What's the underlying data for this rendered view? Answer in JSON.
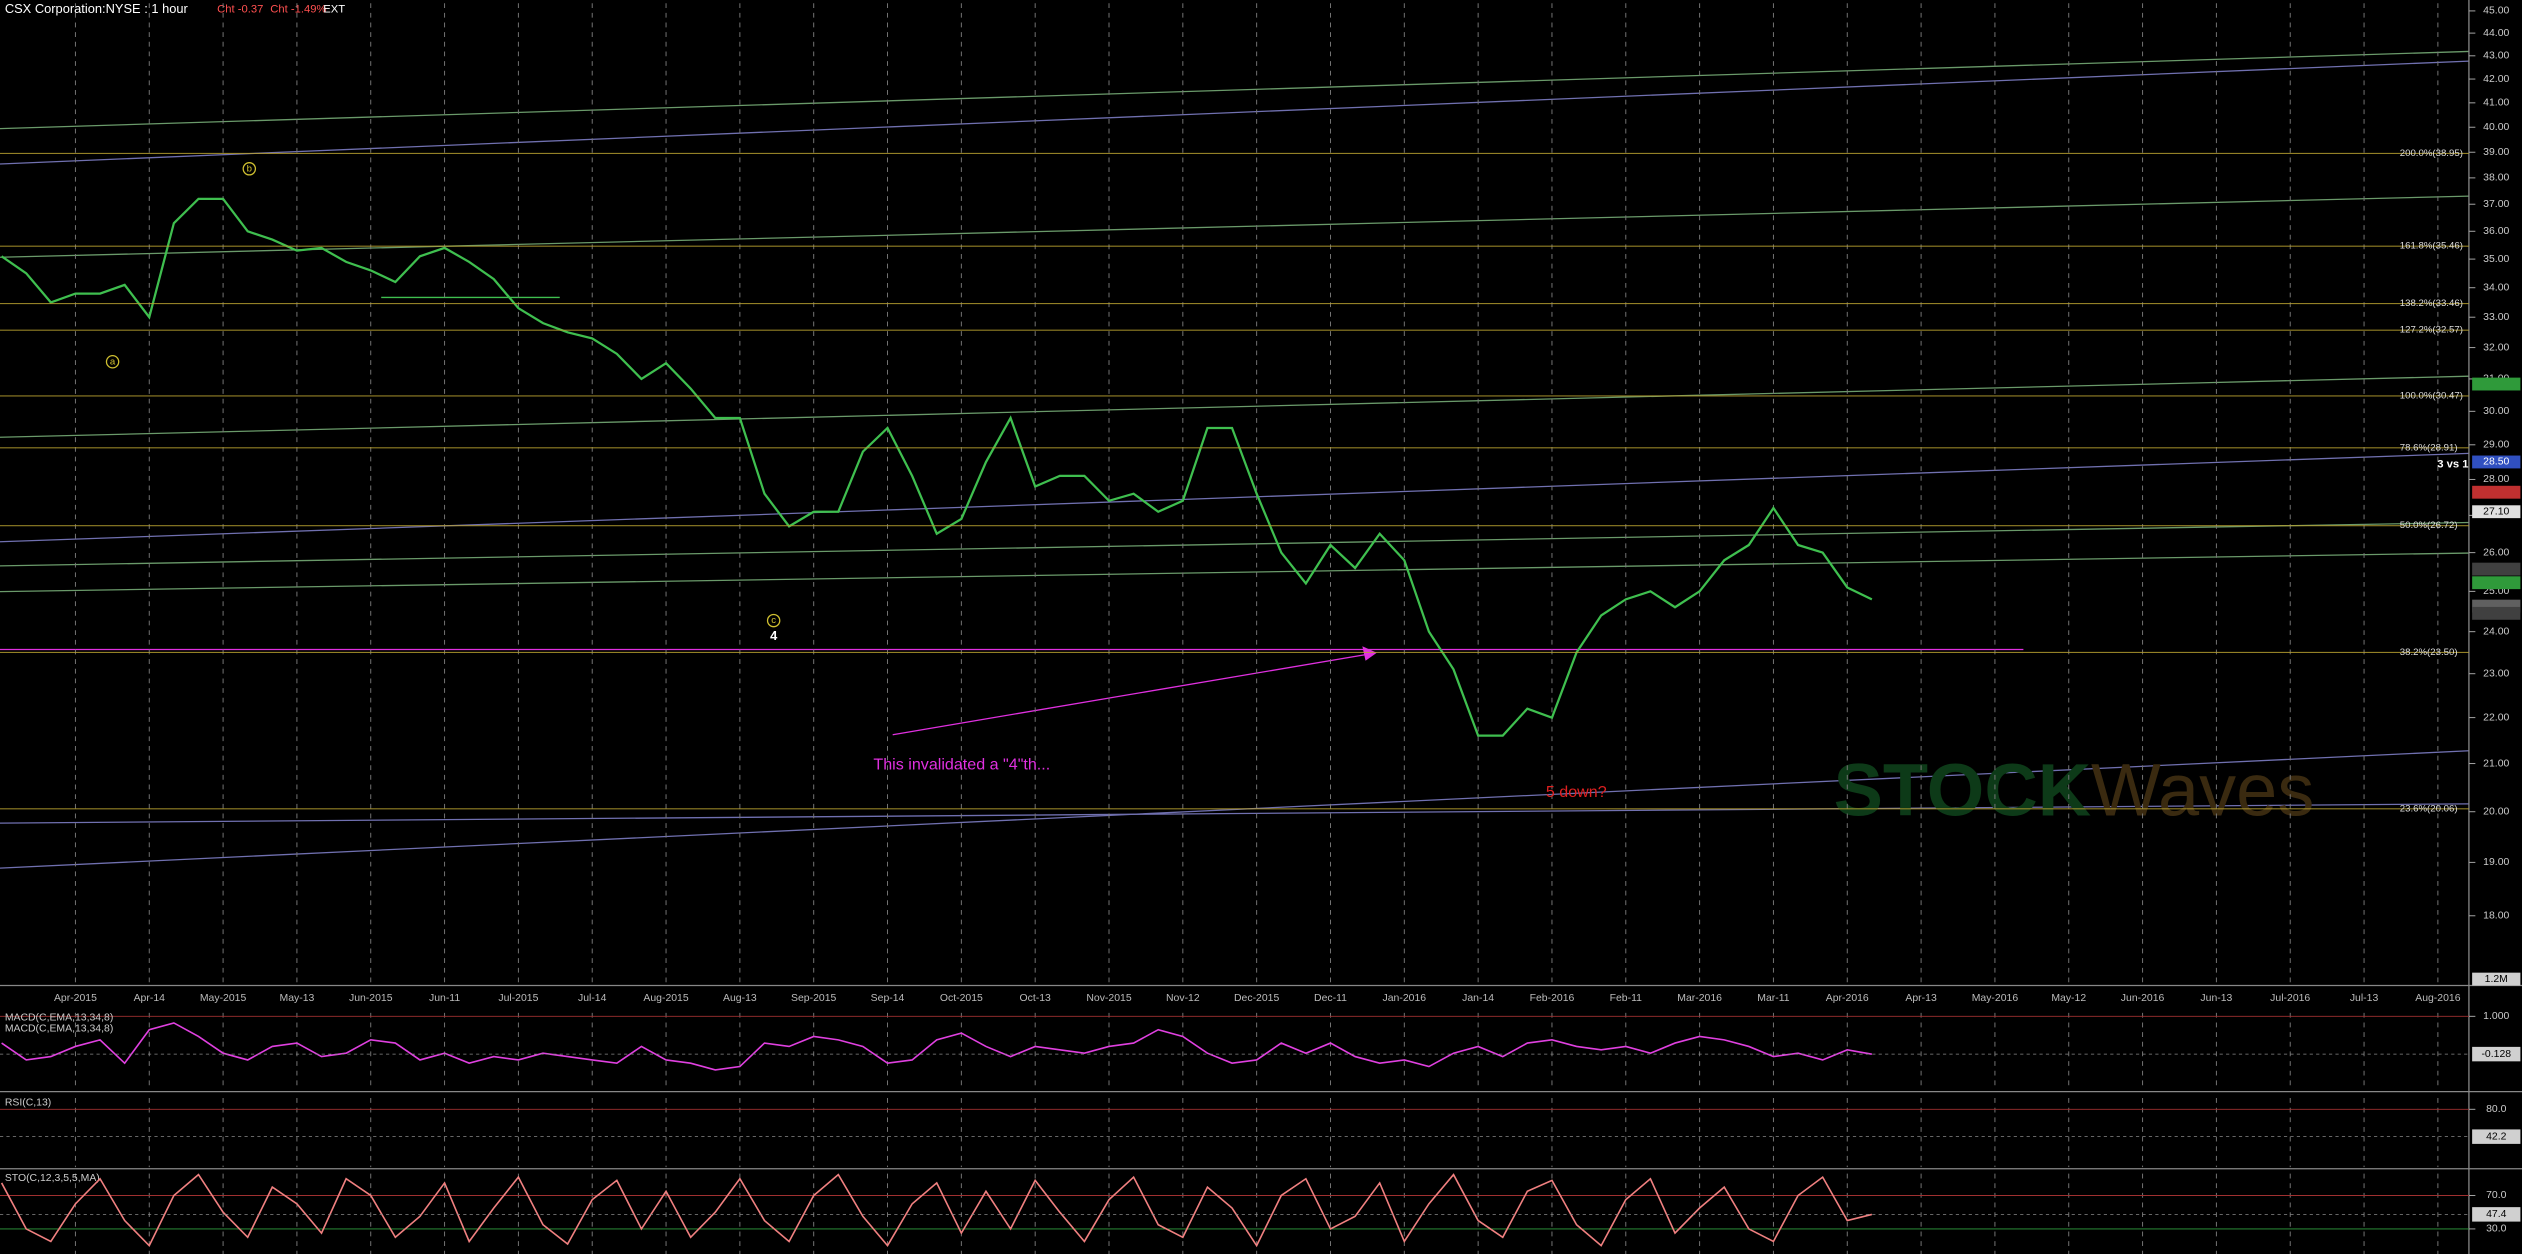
{
  "chart_data": [
    {
      "type": "line",
      "title": "CSX Corporation:NYSE : 1 hour",
      "header_items": [
        {
          "text": "Cht -0.37",
          "color": "#ff5050"
        },
        {
          "text": "Cht -1.49%",
          "color": "#ff5050"
        },
        {
          "text": "EXT",
          "color": "#ffffff"
        }
      ],
      "log": true,
      "ylim": [
        16.8,
        45.5
      ],
      "yticks": [
        {
          "value": 18,
          "label": "18.00"
        },
        {
          "value": 19,
          "label": "19.00"
        },
        {
          "value": 20,
          "label": "20.00"
        },
        {
          "value": 21,
          "label": "21.00"
        },
        {
          "value": 22,
          "label": "22.00"
        },
        {
          "value": 23,
          "label": "23.00"
        },
        {
          "value": 24,
          "label": "24.00"
        },
        {
          "value": 25,
          "label": "25.00"
        },
        {
          "value": 26,
          "label": "26.00"
        },
        {
          "value": 27,
          "label": "27.00"
        },
        {
          "value": 28,
          "label": "28.00"
        },
        {
          "value": 29,
          "label": "29.00"
        },
        {
          "value": 30,
          "label": "30.00"
        },
        {
          "value": 31,
          "label": "31.00"
        },
        {
          "value": 32,
          "label": "32.00"
        },
        {
          "value": 33,
          "label": "33.00"
        },
        {
          "value": 34,
          "label": "34.00"
        },
        {
          "value": 35,
          "label": "35.00"
        },
        {
          "value": 36,
          "label": "36.00"
        },
        {
          "value": 37,
          "label": "37.00"
        },
        {
          "value": 38,
          "label": "38.00"
        },
        {
          "value": 39,
          "label": "39.00"
        },
        {
          "value": 40,
          "label": "40.00"
        },
        {
          "value": 41,
          "label": "41.00"
        },
        {
          "value": 42,
          "label": "42.00"
        },
        {
          "value": 43,
          "label": "43.00"
        },
        {
          "value": 44,
          "label": "44.00"
        },
        {
          "value": 45,
          "label": "45.00"
        }
      ],
      "categories": [
        null,
        null,
        null,
        "Apr-2015",
        null,
        null,
        "Apr-14",
        null,
        null,
        "May-2015",
        null,
        null,
        "May-13",
        null,
        null,
        "Jun-2015",
        null,
        null,
        "Jun-11",
        null,
        null,
        "Jul-2015",
        null,
        null,
        "Jul-14",
        null,
        null,
        "Aug-2015",
        null,
        null,
        "Aug-13",
        null,
        null,
        "Sep-2015",
        null,
        null,
        "Sep-14",
        null,
        null,
        "Oct-2015",
        null,
        null,
        "Oct-13",
        null,
        null,
        "Nov-2015",
        null,
        null,
        "Nov-12",
        null,
        null,
        "Dec-2015",
        null,
        null,
        "Dec-11",
        null,
        null,
        "Jan-2016",
        null,
        null,
        "Jan-14",
        null,
        null,
        "Feb-2016",
        null,
        null,
        "Feb-11",
        null,
        null,
        "Mar-2016",
        null,
        null,
        "Mar-11",
        null,
        null,
        "Apr-2016",
        null,
        null,
        "Apr-13",
        null,
        null,
        "May-2016",
        null,
        null,
        "May-12",
        null,
        null,
        "Jun-2016",
        null,
        null,
        "Jun-13",
        null,
        null,
        "Jul-2016",
        null,
        null,
        "Jul-13",
        null,
        null,
        "Aug-2016"
      ],
      "grid": true,
      "series": [
        {
          "name": "CSX",
          "color": "#3fbf4f",
          "values": [
            35.1,
            34.5,
            33.5,
            33.8,
            33.8,
            34.1,
            33.0,
            36.3,
            37.2,
            37.2,
            36.0,
            35.7,
            35.3,
            35.4,
            34.9,
            34.6,
            34.2,
            35.1,
            35.4,
            34.9,
            34.3,
            33.3,
            32.8,
            32.5,
            32.3,
            31.8,
            31.0,
            31.5,
            30.7,
            29.8,
            29.8,
            27.6,
            26.7,
            27.1,
            27.1,
            28.8,
            29.5,
            28.1,
            26.5,
            26.9,
            28.5,
            29.8,
            27.8,
            28.1,
            28.1,
            27.4,
            27.6,
            27.1,
            27.4,
            29.5,
            29.5,
            27.6,
            26.0,
            25.2,
            26.2,
            25.6,
            26.5,
            25.8,
            24.0,
            23.1,
            21.6,
            21.6,
            22.2,
            22.0,
            23.5,
            24.4,
            24.8,
            25.0,
            24.6,
            25.0,
            25.8,
            26.2,
            27.2,
            26.2,
            26.0,
            25.1,
            24.8,
            null,
            null,
            null,
            null,
            null,
            null,
            null,
            null,
            null,
            null,
            null,
            null,
            null,
            null,
            null,
            null,
            null,
            null,
            null,
            null,
            null,
            null,
            null
          ]
        }
      ],
      "fib_line_color": "#b8a030",
      "fib_levels": [
        {
          "value": 38.95,
          "label": "200.0%(38.95)"
        },
        {
          "value": 35.46,
          "label": "161.8%(35.46)"
        },
        {
          "value": 33.46,
          "label": "138.2%(33.46)"
        },
        {
          "value": 32.57,
          "label": "127.2%(32.57)"
        },
        {
          "value": 30.47,
          "label": "100.0%(30.47)"
        },
        {
          "value": 28.91,
          "label": "78.6%(28.91)"
        },
        {
          "value": 26.72,
          "label": "50.0%(26.72)"
        },
        {
          "value": 23.5,
          "label": "38.2%(23.50)"
        },
        {
          "value": 20.06,
          "label": "23.6%(20.06)"
        }
      ],
      "axis_markers": [
        {
          "value": 30.84,
          "color": "#2f9a3a"
        },
        {
          "value": 28.5,
          "label": "28.50",
          "color": "#3050c0"
        },
        {
          "value": 27.64,
          "color": "#c03030"
        },
        {
          "value": 27.1,
          "label": "27.10",
          "color": "#e0e0e0"
        },
        {
          "value": 25.57,
          "color": "#404040"
        },
        {
          "value": 25.22,
          "color": "#2f9a3a"
        },
        {
          "value": 24.63,
          "color": "#606060"
        },
        {
          "value": 24.45,
          "color": "#404040"
        }
      ],
      "annotations": [
        {
          "text": "4",
          "color": "#ffffff"
        },
        {
          "text": "5 down?",
          "color": "#e02020"
        },
        {
          "text": "3 vs 1",
          "color": "#ffffff"
        },
        {
          "text": "This invalidated a \"4\"th...",
          "color": "#e030e0"
        },
        {
          "text": "a",
          "color": "#d0c030",
          "circled": true
        },
        {
          "text": "b",
          "color": "#d0c030",
          "circled": true
        },
        {
          "text": "c",
          "color": "#d0c030",
          "circled": true
        }
      ],
      "volume_ticks": [
        {
          "value": 1200000,
          "label": "1.2M"
        }
      ],
      "watermark": [
        "STOCK",
        "Waves"
      ]
    },
    {
      "type": "line",
      "title": "MACD(C,EMA,13,34,8)",
      "subtitle": "MACD(C,EMA,13,34,8)",
      "ylim": [
        -1.2,
        1.2
      ],
      "yticks": [
        {
          "value": 1,
          "label": "1.000"
        }
      ],
      "last_value": {
        "value": -0.128,
        "label": "-0.128"
      },
      "series": [
        {
          "name": "MACD",
          "color": "#e040e0",
          "values": [
            0.2,
            -0.3,
            -0.2,
            0.1,
            0.3,
            -0.4,
            0.6,
            0.8,
            0.4,
            -0.1,
            -0.3,
            0.1,
            0.2,
            -0.2,
            -0.1,
            0.3,
            0.2,
            -0.3,
            -0.1,
            -0.4,
            -0.2,
            -0.3,
            -0.1,
            -0.2,
            -0.3,
            -0.4,
            0.1,
            -0.3,
            -0.4,
            -0.6,
            -0.5,
            0.2,
            0.1,
            0.4,
            0.3,
            0.1,
            -0.4,
            -0.3,
            0.3,
            0.5,
            0.1,
            -0.2,
            0.1,
            0.0,
            -0.1,
            0.1,
            0.2,
            0.6,
            0.4,
            -0.1,
            -0.4,
            -0.3,
            0.2,
            -0.1,
            0.2,
            -0.2,
            -0.4,
            -0.3,
            -0.5,
            -0.1,
            0.1,
            -0.2,
            0.2,
            0.3,
            0.1,
            0.0,
            0.1,
            -0.1,
            0.2,
            0.4,
            0.3,
            0.1,
            -0.2,
            -0.1,
            -0.3,
            0.0,
            -0.128,
            null,
            null,
            null,
            null,
            null,
            null,
            null,
            null,
            null,
            null,
            null,
            null,
            null,
            null,
            null,
            null,
            null,
            null,
            null,
            null,
            null,
            null,
            null
          ]
        }
      ]
    },
    {
      "type": "line",
      "title": "RSI(C,13)",
      "ylim": [
        0,
        100
      ],
      "yticks": [
        {
          "value": 80,
          "label": "80.0"
        }
      ],
      "last_value": 42.2,
      "series": []
    },
    {
      "type": "line",
      "title": "STO(C,12,3,5,5,MA)",
      "ylim": [
        0,
        100
      ],
      "yticks": [
        {
          "value": 70,
          "label": "70.0"
        },
        {
          "value": 30,
          "label": "30.0"
        }
      ],
      "last_value": 47.4,
      "series": [
        {
          "name": "STO",
          "color": "#f08080",
          "values": [
            85,
            30,
            15,
            60,
            90,
            40,
            10,
            70,
            95,
            50,
            20,
            80,
            60,
            25,
            90,
            70,
            20,
            45,
            85,
            15,
            55,
            92,
            35,
            12,
            65,
            88,
            30,
            75,
            20,
            50,
            90,
            40,
            15,
            70,
            95,
            45,
            10,
            60,
            85,
            25,
            75,
            30,
            88,
            50,
            15,
            65,
            92,
            35,
            20,
            80,
            55,
            10,
            70,
            90,
            30,
            45,
            85,
            15,
            60,
            95,
            40,
            20,
            75,
            88,
            35,
            10,
            65,
            90,
            25,
            55,
            80,
            30,
            15,
            70,
            92,
            40,
            47.4,
            null,
            null,
            null,
            null,
            null,
            null,
            null,
            null,
            null,
            null,
            null,
            null,
            null,
            null,
            null,
            null,
            null,
            null,
            null,
            null,
            null,
            null,
            null
          ]
        }
      ]
    }
  ]
}
